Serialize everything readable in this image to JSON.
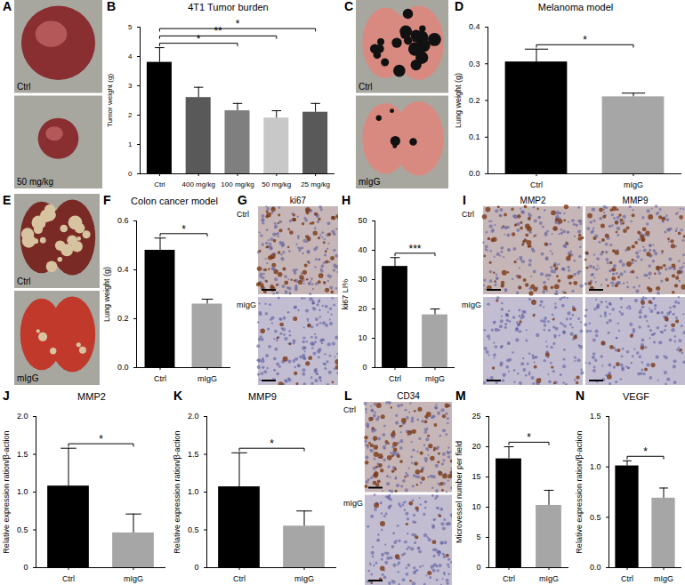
{
  "chart_data": [
    {
      "panel": "B",
      "type": "bar",
      "title": "4T1 Tumor burden",
      "y_label": "Tumor weight (g)",
      "categories": [
        "Ctrl",
        "400 mg/kg",
        "100 mg/kg",
        "50 mg/kg",
        "25 mg/kg"
      ],
      "values": [
        3.8,
        2.6,
        2.15,
        1.9,
        2.1
      ],
      "errors": [
        0.5,
        0.35,
        0.25,
        0.25,
        0.3
      ],
      "colors": [
        "#000000",
        "#595959",
        "#7f7f7f",
        "#c8c8c8",
        "#595959"
      ],
      "ylim": [
        0,
        5
      ],
      "yticks": [
        0,
        1,
        2,
        3,
        4,
        5
      ],
      "annotations": [
        {
          "from": "Ctrl",
          "to": "100 mg/kg",
          "text": "*"
        },
        {
          "from": "Ctrl",
          "to": "50 mg/kg",
          "text": "**"
        },
        {
          "from": "Ctrl",
          "to": "25 mg/kg",
          "text": "*"
        }
      ]
    },
    {
      "panel": "D",
      "type": "bar",
      "title": "Melanoma model",
      "y_label": "Lung weight (g)",
      "categories": [
        "Ctrl",
        "mIgG"
      ],
      "values": [
        0.305,
        0.21
      ],
      "errors": [
        0.035,
        0.01
      ],
      "colors": [
        "#000000",
        "#a6a6a6"
      ],
      "ylim": [
        0,
        0.4
      ],
      "yticks": [
        {
          "value": 0,
          "label": "0.0"
        },
        0.1,
        0.2,
        0.3,
        0.4
      ],
      "annotations": [
        {
          "from": "Ctrl",
          "to": "mIgG",
          "text": "*"
        }
      ]
    },
    {
      "panel": "F",
      "type": "bar",
      "title": "Colon cancer model",
      "y_label": "Lung weight (g)",
      "categories": [
        "Ctrl",
        "mIgG"
      ],
      "values": [
        0.48,
        0.26
      ],
      "errors": [
        0.05,
        0.02
      ],
      "colors": [
        "#000000",
        "#a6a6a6"
      ],
      "ylim": [
        0,
        0.6
      ],
      "yticks": [
        {
          "value": 0,
          "label": "0.0"
        },
        0.2,
        0.4,
        0.6
      ],
      "annotations": [
        {
          "from": "Ctrl",
          "to": "mIgG",
          "text": "*"
        }
      ]
    },
    {
      "panel": "H",
      "type": "bar",
      "y_label": "ki67 LI%",
      "categories": [
        "Ctrl",
        "mIgG"
      ],
      "values": [
        34.5,
        18
      ],
      "errors": [
        3,
        2
      ],
      "colors": [
        "#000000",
        "#a6a6a6"
      ],
      "ylim": [
        0,
        50
      ],
      "yticks": [
        0,
        10,
        20,
        30,
        40,
        50
      ],
      "annotations": [
        {
          "from": "Ctrl",
          "to": "mIgG",
          "text": "***"
        }
      ]
    },
    {
      "panel": "J",
      "type": "bar",
      "title": "MMP2",
      "y_label": "Relative expression ration/β-action",
      "categories": [
        "Ctrl",
        "mIgG"
      ],
      "values": [
        1.08,
        0.46
      ],
      "errors": [
        0.5,
        0.25
      ],
      "colors": [
        "#000000",
        "#a6a6a6"
      ],
      "ylim": [
        0,
        2
      ],
      "yticks": [
        0,
        0.5,
        {
          "value": 1,
          "label": "1.0"
        },
        1.5,
        {
          "value": 2,
          "label": "2.0"
        }
      ],
      "annotations": [
        {
          "from": "Ctrl",
          "to": "mIgG",
          "text": "*"
        }
      ]
    },
    {
      "panel": "K",
      "type": "bar",
      "title": "MMP9",
      "y_label": "Relative expression ration/β-action",
      "categories": [
        "Ctrl",
        "mIgG"
      ],
      "values": [
        1.07,
        0.55
      ],
      "errors": [
        0.45,
        0.2
      ],
      "colors": [
        "#000000",
        "#a6a6a6"
      ],
      "ylim": [
        0,
        2
      ],
      "yticks": [
        0,
        0.5,
        {
          "value": 1,
          "label": "1.0"
        },
        1.5,
        {
          "value": 2,
          "label": "2.0"
        }
      ],
      "annotations": [
        {
          "from": "Ctrl",
          "to": "mIgG",
          "text": "*"
        }
      ]
    },
    {
      "panel": "M",
      "type": "bar",
      "y_label": "Microvessel number per field",
      "categories": [
        "Ctrl",
        "mIgG"
      ],
      "values": [
        18,
        10.3
      ],
      "errors": [
        2,
        2.5
      ],
      "colors": [
        "#000000",
        "#a6a6a6"
      ],
      "ylim": [
        0,
        25
      ],
      "yticks": [
        0,
        5,
        10,
        15,
        20,
        25
      ],
      "annotations": [
        {
          "from": "Ctrl",
          "to": "mIgG",
          "text": "*"
        }
      ]
    },
    {
      "panel": "N",
      "type": "bar",
      "title": "VEGF",
      "y_label": "Relative expression ration/β-action",
      "categories": [
        "Ctrl",
        "mIgG"
      ],
      "values": [
        1.01,
        0.69
      ],
      "errors": [
        0.05,
        0.1
      ],
      "colors": [
        "#000000",
        "#a6a6a6"
      ],
      "ylim": [
        0,
        1.5
      ],
      "yticks": [
        {
          "value": 0,
          "label": "0.0"
        },
        0.5,
        {
          "value": 1,
          "label": "1.0"
        },
        1.5
      ],
      "annotations": [
        {
          "from": "Ctrl",
          "to": "mIgG",
          "text": "*"
        }
      ]
    }
  ],
  "images": [
    {
      "panel": "A",
      "labels": [
        "Ctrl",
        "50 mg/kg"
      ]
    },
    {
      "panel": "C",
      "labels": [
        "Ctrl",
        "mIgG"
      ]
    },
    {
      "panel": "E",
      "labels": [
        "Ctrl",
        "mIgG"
      ]
    },
    {
      "panel": "G",
      "titles": [
        "ki67"
      ],
      "labels": [
        "Ctrl",
        "mIgG"
      ]
    },
    {
      "panel": "I",
      "titles": [
        "MMP2",
        "MMP9"
      ],
      "labels": [
        "Ctrl",
        "mIgG"
      ]
    },
    {
      "panel": "L",
      "titles": [
        "CD34"
      ],
      "labels": [
        "Ctrl",
        "mIgG"
      ]
    }
  ]
}
